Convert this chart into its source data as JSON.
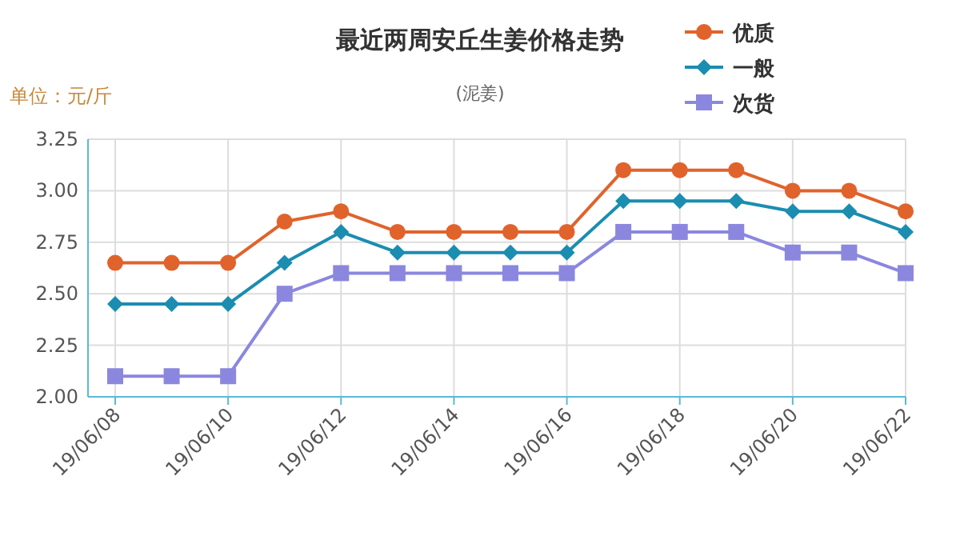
{
  "chart_data": {
    "type": "line",
    "title": "最近两周安丘生姜价格走势",
    "subtitle": "(泥姜)",
    "ylabel": "单位：元/斤",
    "x": [
      "--06-08",
      "--06-09",
      "--06-10",
      "--06-11",
      "--06-12",
      "--06-13",
      "--06-14",
      "--06-15",
      "--06-16",
      "--06-17",
      "--06-18",
      "--06-19",
      "--06-20",
      "--06-21",
      "--06-22"
    ],
    "series": [
      {
        "name": "优质",
        "color": "#e0632c",
        "marker": "circle",
        "values": [
          2.65,
          2.65,
          2.65,
          2.85,
          2.9,
          2.8,
          2.8,
          2.8,
          2.8,
          3.1,
          3.1,
          3.1,
          3.0,
          3.0,
          2.9
        ]
      },
      {
        "name": "一般",
        "color": "#1b8db0",
        "marker": "diamond",
        "values": [
          2.45,
          2.45,
          2.45,
          2.65,
          2.8,
          2.7,
          2.7,
          2.7,
          2.7,
          2.95,
          2.95,
          2.95,
          2.9,
          2.9,
          2.8
        ]
      },
      {
        "name": "次货",
        "color": "#8b87df",
        "marker": "square",
        "values": [
          2.1,
          2.1,
          2.1,
          2.5,
          2.6,
          2.6,
          2.6,
          2.6,
          2.6,
          2.8,
          2.8,
          2.8,
          2.7,
          2.7,
          2.6
        ]
      }
    ],
    "xlim": [
      "--06-08",
      "--06-22"
    ],
    "xticks": [
      {
        "value": "--06-08",
        "label": "19/06/08"
      },
      {
        "value": "--06-10",
        "label": "19/06/10"
      },
      {
        "value": "--06-12",
        "label": "19/06/12"
      },
      {
        "value": "--06-14",
        "label": "19/06/14"
      },
      {
        "value": "--06-16",
        "label": "19/06/16"
      },
      {
        "value": "--06-18",
        "label": "19/06/18"
      },
      {
        "value": "--06-20",
        "label": "19/06/20"
      },
      {
        "value": "--06-22",
        "label": "19/06/22"
      }
    ],
    "ylim": [
      2,
      3.25
    ],
    "yticks": [
      {
        "value": 2,
        "label": "2.00"
      },
      {
        "value": 2.25,
        "label": "2.25"
      },
      {
        "value": 2.5,
        "label": "2.50"
      },
      {
        "value": 2.75,
        "label": "2.75"
      },
      {
        "value": 3,
        "label": "3.00"
      },
      {
        "value": 3.25,
        "label": "3.25"
      }
    ],
    "grid": true,
    "legend": "top right",
    "line_style": "solid"
  }
}
